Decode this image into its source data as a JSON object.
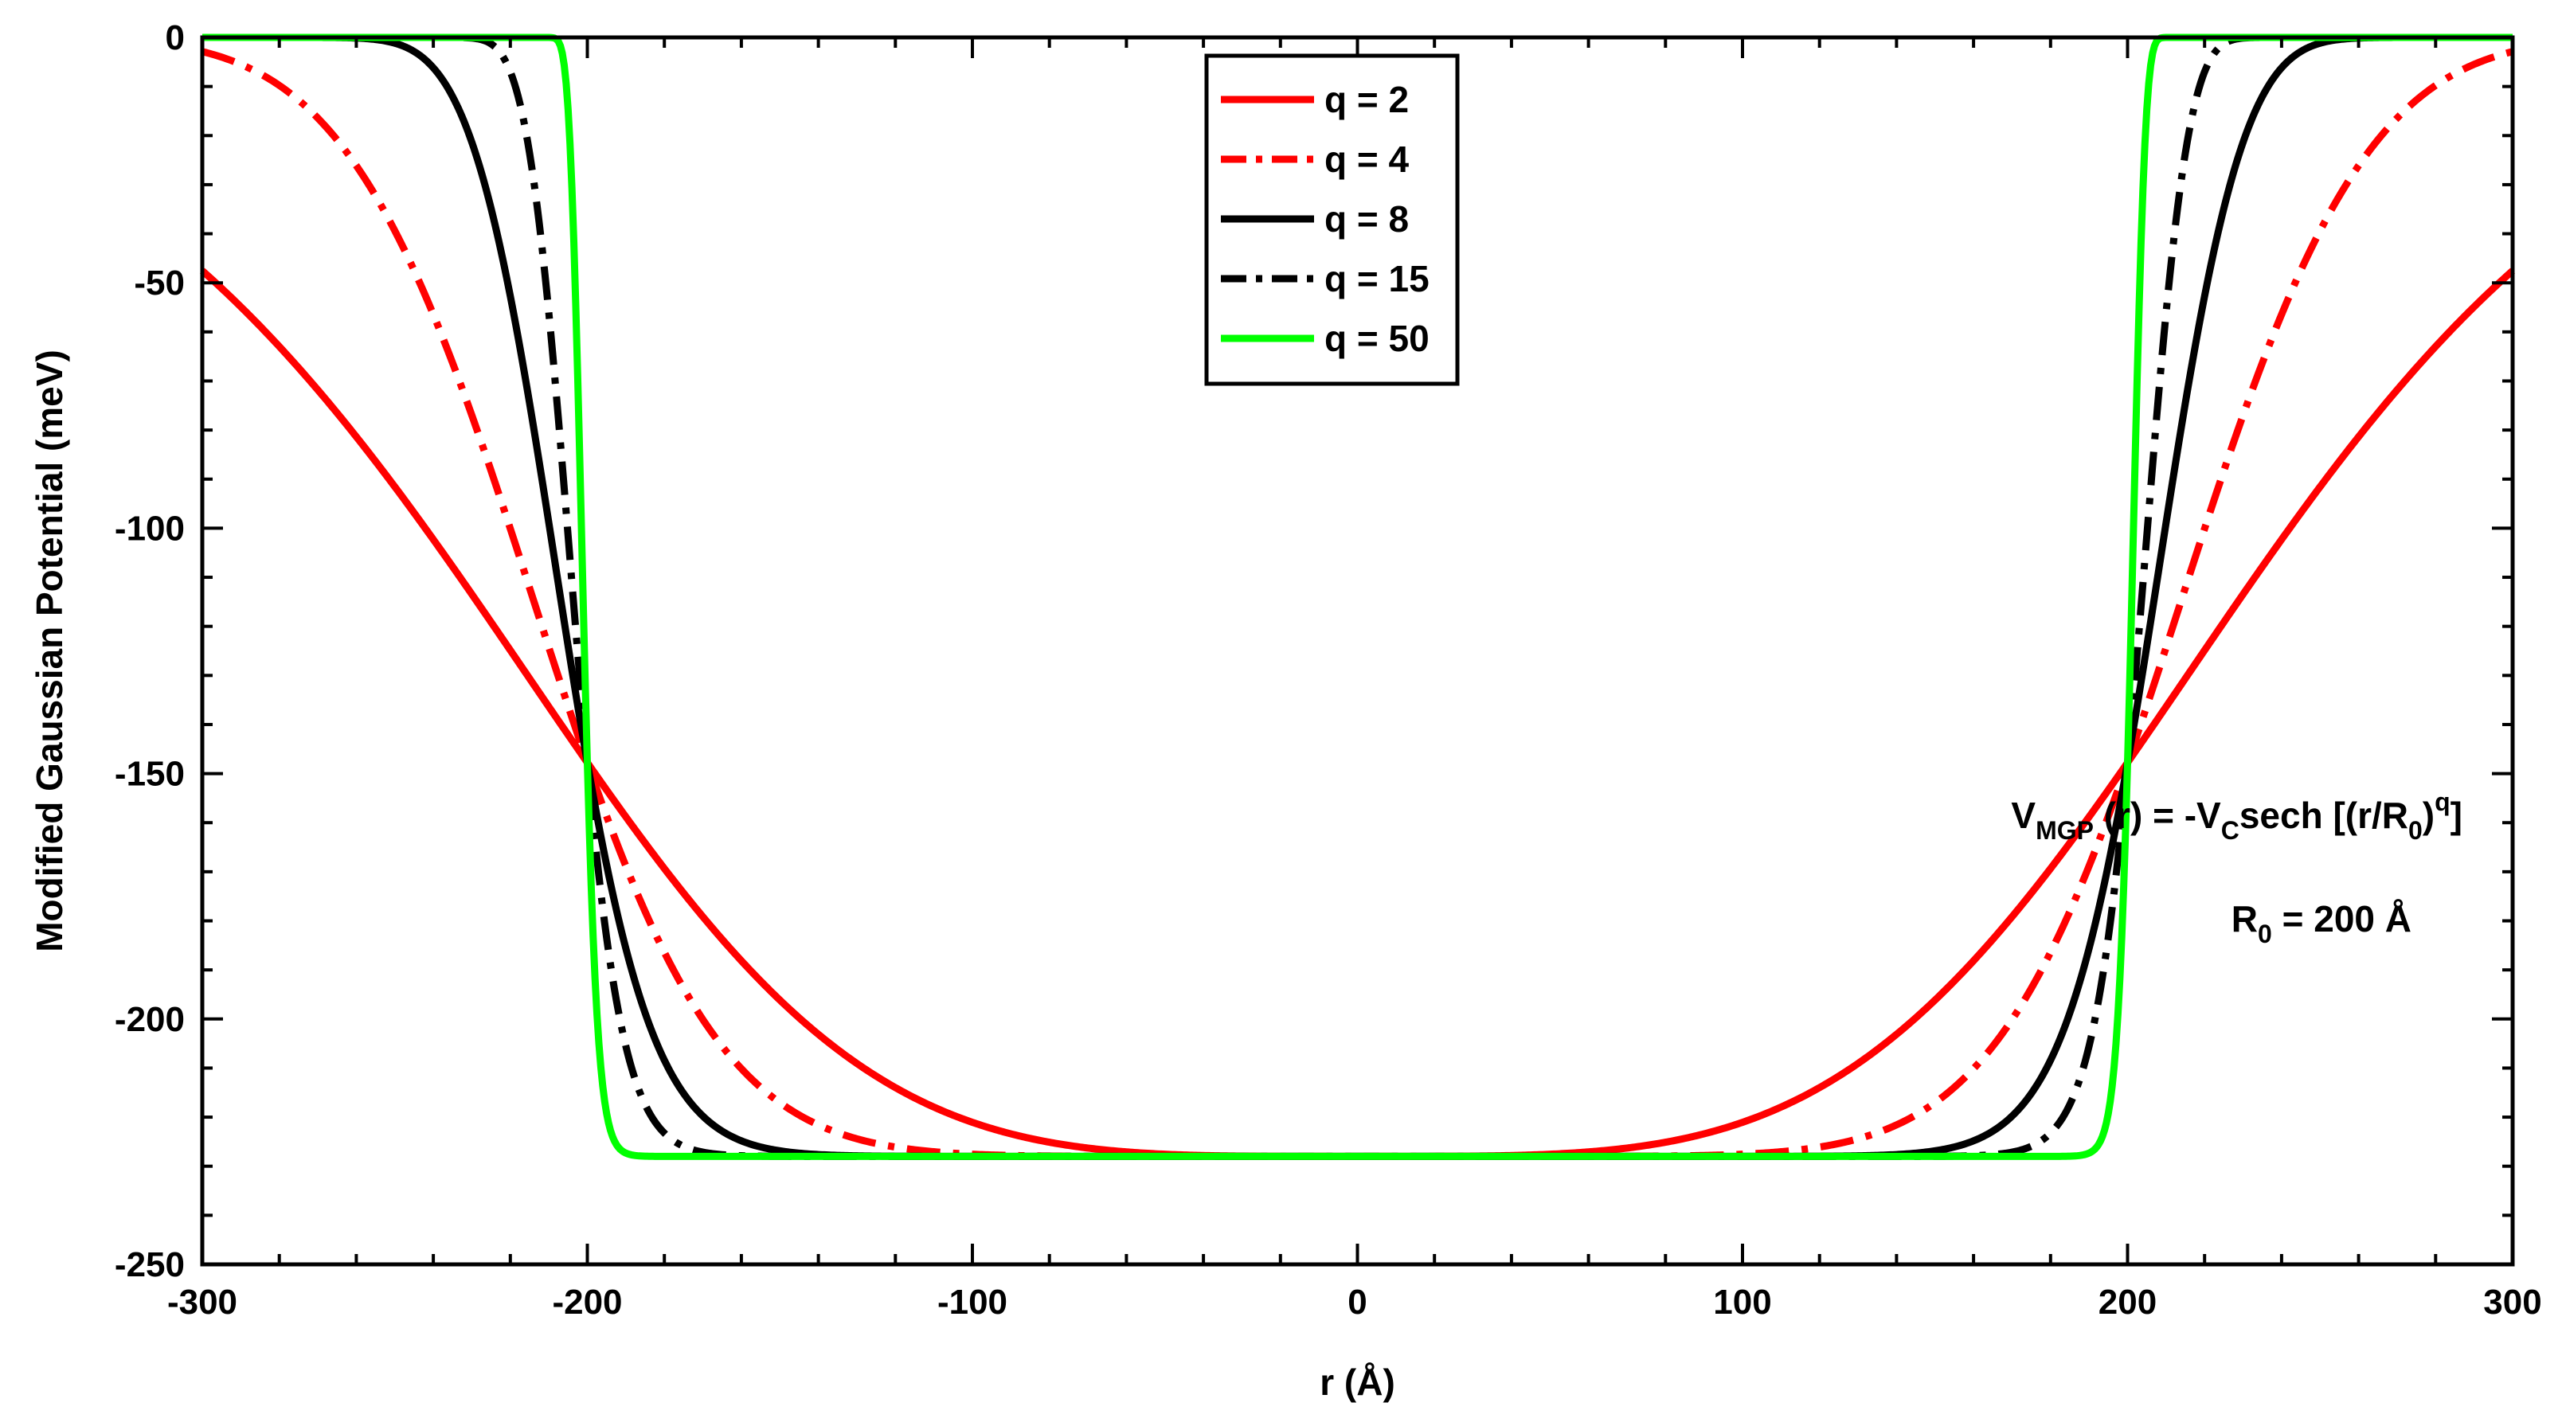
{
  "chart_data": {
    "type": "line",
    "title": "",
    "xlabel": "r (Å)",
    "ylabel": "Modified Gaussian Potential (meV)",
    "xlim": [
      -300,
      300
    ],
    "ylim": [
      -250,
      0
    ],
    "xticks": [
      -300,
      -200,
      -100,
      0,
      100,
      200,
      300
    ],
    "yticks": [
      -250,
      -200,
      -150,
      -100,
      -50,
      0
    ],
    "grid": false,
    "legend_position": "top-center",
    "Vc": 228,
    "R0": 200,
    "series": [
      {
        "name": "q = 2",
        "q": 2,
        "color": "#ff0000",
        "style": "solid"
      },
      {
        "name": "q = 4",
        "q": 4,
        "color": "#ff0000",
        "style": "dashdot"
      },
      {
        "name": "q = 8",
        "q": 8,
        "color": "#000000",
        "style": "solid"
      },
      {
        "name": "q = 15",
        "q": 15,
        "color": "#000000",
        "style": "dashdot"
      },
      {
        "name": "q = 50",
        "q": 50,
        "color": "#00ff00",
        "style": "solid"
      }
    ],
    "annotations": {
      "formula": {
        "parts": [
          "V",
          "MGP",
          " (r) = -V",
          "C",
          "sech [(r/R",
          "0",
          ")",
          "q",
          "]"
        ]
      },
      "r0": {
        "parts": [
          "R",
          "0",
          " = 200 Å"
        ]
      }
    }
  }
}
